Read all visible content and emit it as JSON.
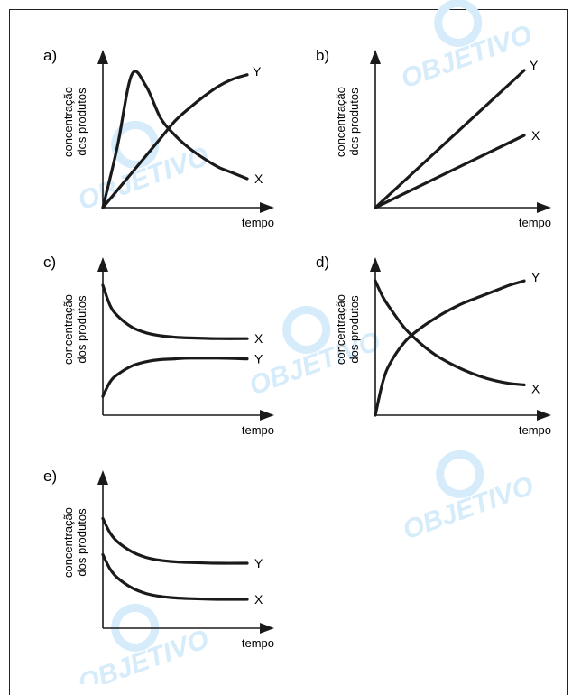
{
  "watermark": {
    "text": "OBJETIVO",
    "color": "#d6ecfb"
  },
  "colors": {
    "curve": "#1a1a1a",
    "axis": "#1a1a1a"
  },
  "chart_data": [
    {
      "type": "line",
      "panel_label": "a)",
      "ylabel_line1": "concentração",
      "ylabel_line2": "dos produtos",
      "xlabel": "tempo",
      "xlim": [
        0,
        10
      ],
      "ylim": [
        0,
        10
      ],
      "series": [
        {
          "name": "X",
          "x": [
            0,
            1,
            2,
            3,
            4,
            5,
            6,
            7,
            8,
            9,
            10
          ],
          "y": [
            0,
            4.2,
            9.2,
            8.4,
            6.2,
            5.0,
            4.1,
            3.4,
            2.8,
            2.4,
            2.0
          ]
        },
        {
          "name": "Y",
          "x": [
            0,
            1,
            2,
            3,
            4,
            5,
            6,
            7,
            8,
            9,
            10
          ],
          "y": [
            0,
            1.2,
            2.4,
            3.6,
            4.8,
            6.0,
            6.9,
            7.7,
            8.4,
            8.9,
            9.2
          ]
        }
      ]
    },
    {
      "type": "line",
      "panel_label": "b)",
      "ylabel_line1": "concentração",
      "ylabel_line2": "dos produtos",
      "xlabel": "tempo",
      "xlim": [
        0,
        10
      ],
      "ylim": [
        0,
        10
      ],
      "series": [
        {
          "name": "Y",
          "x": [
            0,
            10
          ],
          "y": [
            0,
            9.5
          ]
        },
        {
          "name": "X",
          "x": [
            0,
            10
          ],
          "y": [
            0,
            5.0
          ]
        }
      ]
    },
    {
      "type": "line",
      "panel_label": "c)",
      "ylabel_line1": "concentração",
      "ylabel_line2": "dos produtos",
      "xlabel": "tempo",
      "xlim": [
        0,
        10
      ],
      "ylim": [
        0,
        10
      ],
      "series": [
        {
          "name": "X",
          "x": [
            0,
            0.5,
            1,
            2,
            3,
            4,
            5,
            6,
            8,
            10
          ],
          "y": [
            9.0,
            7.6,
            6.9,
            6.1,
            5.7,
            5.5,
            5.4,
            5.35,
            5.3,
            5.3
          ]
        },
        {
          "name": "Y",
          "x": [
            0,
            0.5,
            1,
            2,
            3,
            4,
            5,
            6,
            8,
            10
          ],
          "y": [
            1.3,
            2.3,
            2.8,
            3.4,
            3.7,
            3.85,
            3.9,
            3.95,
            3.95,
            3.9
          ]
        }
      ]
    },
    {
      "type": "line",
      "panel_label": "d)",
      "ylabel_line1": "concentração",
      "ylabel_line2": "dos produtos",
      "xlabel": "tempo",
      "xlim": [
        0,
        10
      ],
      "ylim": [
        0,
        10
      ],
      "series": [
        {
          "name": "Y",
          "x": [
            0,
            0.5,
            1,
            2,
            3,
            4,
            5,
            6,
            7,
            8,
            9,
            10
          ],
          "y": [
            0,
            2.3,
            3.6,
            5.1,
            6.0,
            6.7,
            7.3,
            7.8,
            8.2,
            8.6,
            9.0,
            9.3
          ]
        },
        {
          "name": "X",
          "x": [
            0,
            0.5,
            1,
            2,
            3,
            4,
            5,
            6,
            7,
            8,
            9,
            10
          ],
          "y": [
            9.3,
            8.2,
            7.4,
            6.0,
            5.0,
            4.2,
            3.6,
            3.1,
            2.7,
            2.4,
            2.2,
            2.1
          ]
        }
      ]
    },
    {
      "type": "line",
      "panel_label": "e)",
      "ylabel_line1": "concentração",
      "ylabel_line2": "dos produtos",
      "xlabel": "tempo",
      "xlim": [
        0,
        10
      ],
      "ylim": [
        0,
        10
      ],
      "series": [
        {
          "name": "Y",
          "x": [
            0,
            0.5,
            1,
            2,
            3,
            4,
            5,
            6,
            8,
            10
          ],
          "y": [
            7.6,
            6.6,
            6.0,
            5.3,
            4.9,
            4.7,
            4.6,
            4.55,
            4.5,
            4.5
          ]
        },
        {
          "name": "X",
          "x": [
            0,
            0.5,
            1,
            2,
            3,
            4,
            5,
            6,
            8,
            10
          ],
          "y": [
            5.1,
            4.1,
            3.5,
            2.8,
            2.4,
            2.2,
            2.1,
            2.05,
            2.0,
            2.0
          ]
        }
      ]
    }
  ]
}
